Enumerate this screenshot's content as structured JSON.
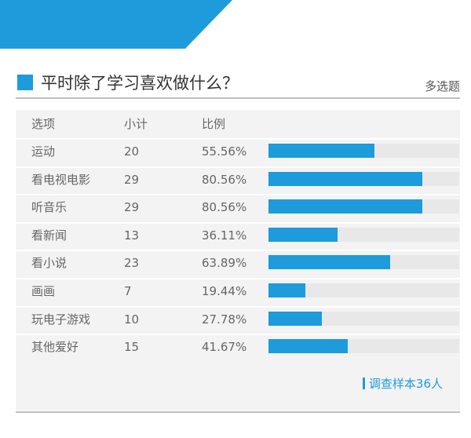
{
  "question": {
    "title": "平时除了学习喜欢做什么？",
    "type_label": "多选题"
  },
  "table": {
    "headers": [
      "选项",
      "小计",
      "比例"
    ]
  },
  "chart_data": {
    "type": "bar",
    "orientation": "horizontal",
    "xlim": [
      0,
      100
    ],
    "categories": [
      "运动",
      "看电视电影",
      "听音乐",
      "看新闻",
      "看小说",
      "画画",
      "玩电子游戏",
      "其他爱好"
    ],
    "counts": [
      20,
      29,
      29,
      13,
      23,
      7,
      10,
      15
    ],
    "percent_labels": [
      "55.56%",
      "80.56%",
      "80.56%",
      "36.11%",
      "63.89%",
      "19.44%",
      "27.78%",
      "41.67%"
    ],
    "values": [
      55.56,
      80.56,
      80.56,
      36.11,
      63.89,
      19.44,
      27.78,
      41.67
    ]
  },
  "sample_note": "调查样本36人",
  "colors": {
    "accent": "#1e9bdb",
    "track": "#e8e8e8",
    "panel": "#f3f3f3"
  }
}
